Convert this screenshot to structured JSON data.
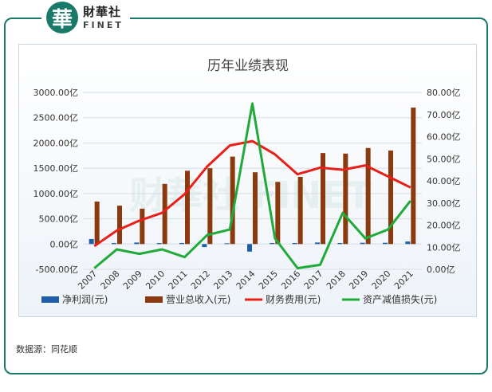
{
  "header": {
    "logo_glyph": "華",
    "logo_cn": "財華社",
    "logo_en": "FINET"
  },
  "source_text": "数据源：同花顺",
  "chart_data": {
    "type": "bar-line",
    "title": "历年业绩表现",
    "categories": [
      "2007",
      "2008",
      "2009",
      "2010",
      "2011",
      "2012",
      "2013",
      "2014",
      "2015",
      "2016",
      "2017",
      "2018",
      "2019",
      "2020",
      "2021"
    ],
    "left_axis": {
      "min": -500,
      "max": 3000,
      "step": 500,
      "tick_labels": [
        "-500.00亿",
        "0.00亿",
        "500.00亿",
        "1000.00亿",
        "1500.00亿",
        "2000.00亿",
        "2500.00亿",
        "3000.00亿"
      ]
    },
    "right_axis": {
      "min": 0,
      "max": 80,
      "step": 10,
      "tick_labels": [
        "0.00亿",
        "10.00亿",
        "20.00亿",
        "30.00亿",
        "40.00亿",
        "50.00亿",
        "60.00亿",
        "70.00亿",
        "80.00亿"
      ]
    },
    "series": [
      {
        "name": "净利润(元)",
        "kind": "bar",
        "axis": "left",
        "color": "#1f5fa8",
        "values": [
          100,
          20,
          30,
          20,
          20,
          -60,
          15,
          -150,
          20,
          20,
          30,
          20,
          25,
          25,
          50
        ]
      },
      {
        "name": "营业总收入(元)",
        "kind": "bar",
        "axis": "left",
        "color": "#8b3a10",
        "values": [
          840,
          760,
          700,
          1190,
          1450,
          1500,
          1730,
          1420,
          1230,
          1330,
          1800,
          1790,
          1900,
          1850,
          2700
        ]
      },
      {
        "name": "财务费用(元)",
        "kind": "line",
        "axis": "right",
        "color": "#e8201a",
        "values": [
          10.5,
          17.5,
          22,
          25.5,
          34,
          46.5,
          56,
          58,
          52,
          43,
          46,
          45,
          47,
          42,
          37
        ]
      },
      {
        "name": "资产减值损失(元)",
        "kind": "line",
        "axis": "right",
        "color": "#1faa3a",
        "values": [
          0.5,
          9,
          7,
          9,
          5.5,
          15.5,
          18,
          75,
          14,
          0.5,
          2,
          25.5,
          14,
          18,
          31
        ]
      }
    ],
    "legend_position": "bottom",
    "grid": true,
    "watermark": "财華社 FINET"
  }
}
